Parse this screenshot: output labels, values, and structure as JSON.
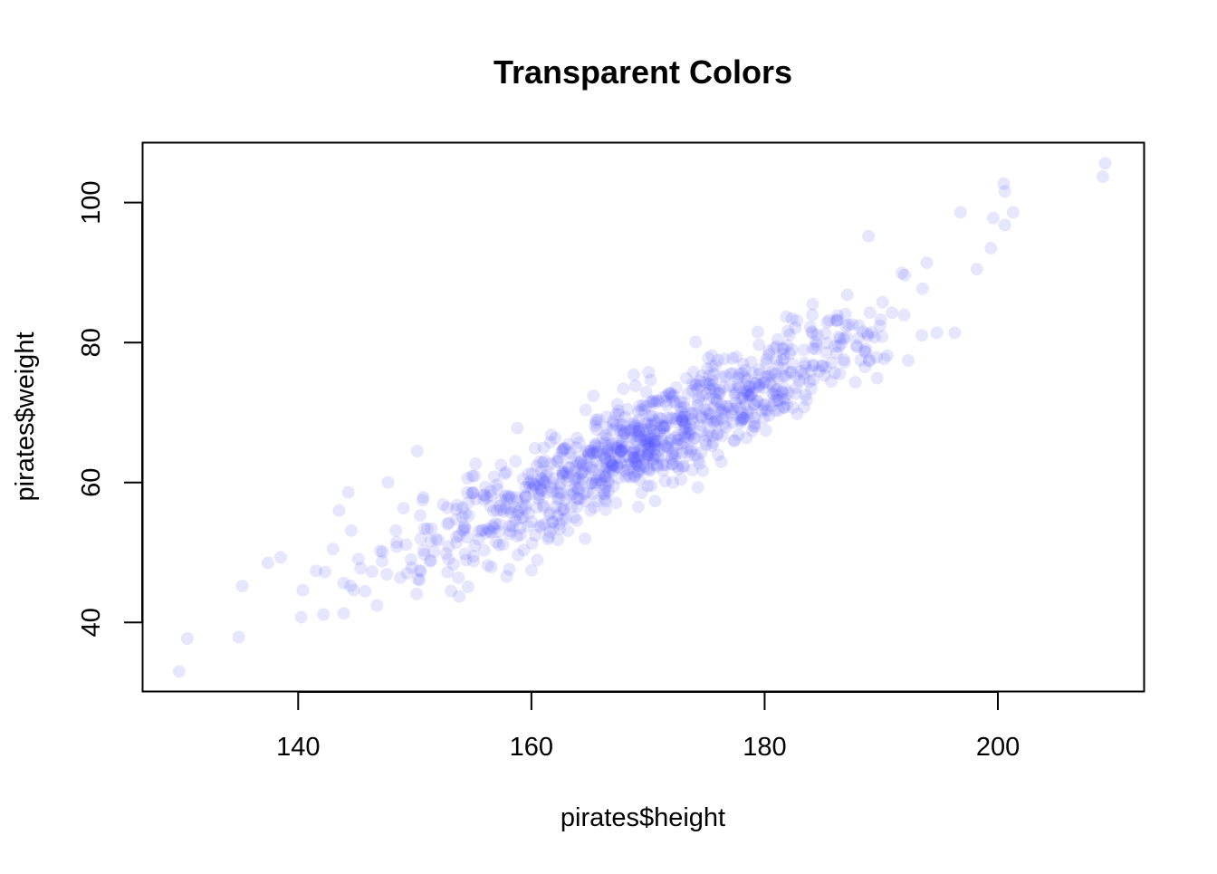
{
  "colors": {
    "point_fill": "#4d4dff",
    "point_alpha": 0.14,
    "axis": "#000000",
    "background": "#ffffff"
  },
  "chart_data": {
    "type": "scatter",
    "title": "Transparent Colors",
    "xlabel": "pirates$height",
    "ylabel": "pirates$weight",
    "xlim": [
      126.7,
      212.5
    ],
    "ylim": [
      30.2,
      108.5
    ],
    "xticks": [
      140,
      160,
      180,
      200
    ],
    "yticks": [
      40,
      60,
      80,
      100
    ],
    "grid": false,
    "legend": "none",
    "point_count": 1000,
    "trend": {
      "slope": 0.8,
      "intercept": -69.9,
      "noise_sd": 3.8
    },
    "x_distribution": {
      "mean": 170.2,
      "sd": 10.6,
      "min": 129.8,
      "max": 209.2
    },
    "notable_points": [
      {
        "x": 129.8,
        "y": 33.0
      },
      {
        "x": 130.5,
        "y": 37.7
      },
      {
        "x": 134.9,
        "y": 37.9
      },
      {
        "x": 135.2,
        "y": 45.2
      },
      {
        "x": 137.4,
        "y": 48.5
      },
      {
        "x": 138.5,
        "y": 49.3
      },
      {
        "x": 140.4,
        "y": 44.6
      },
      {
        "x": 142.3,
        "y": 47.2
      },
      {
        "x": 143.5,
        "y": 56.0
      },
      {
        "x": 143.9,
        "y": 41.3
      },
      {
        "x": 144.3,
        "y": 58.6
      },
      {
        "x": 147.7,
        "y": 60.0
      },
      {
        "x": 150.2,
        "y": 64.5
      },
      {
        "x": 153.1,
        "y": 44.5
      },
      {
        "x": 158.1,
        "y": 47.6
      },
      {
        "x": 188.9,
        "y": 95.2
      },
      {
        "x": 193.9,
        "y": 91.4
      },
      {
        "x": 196.3,
        "y": 81.4
      },
      {
        "x": 196.8,
        "y": 98.6
      },
      {
        "x": 198.2,
        "y": 90.5
      },
      {
        "x": 199.4,
        "y": 93.5
      },
      {
        "x": 199.6,
        "y": 97.8
      },
      {
        "x": 200.5,
        "y": 102.7
      },
      {
        "x": 200.6,
        "y": 101.6
      },
      {
        "x": 200.6,
        "y": 96.8
      },
      {
        "x": 201.3,
        "y": 98.6
      },
      {
        "x": 209.0,
        "y": 103.7
      },
      {
        "x": 209.2,
        "y": 105.6
      }
    ]
  }
}
